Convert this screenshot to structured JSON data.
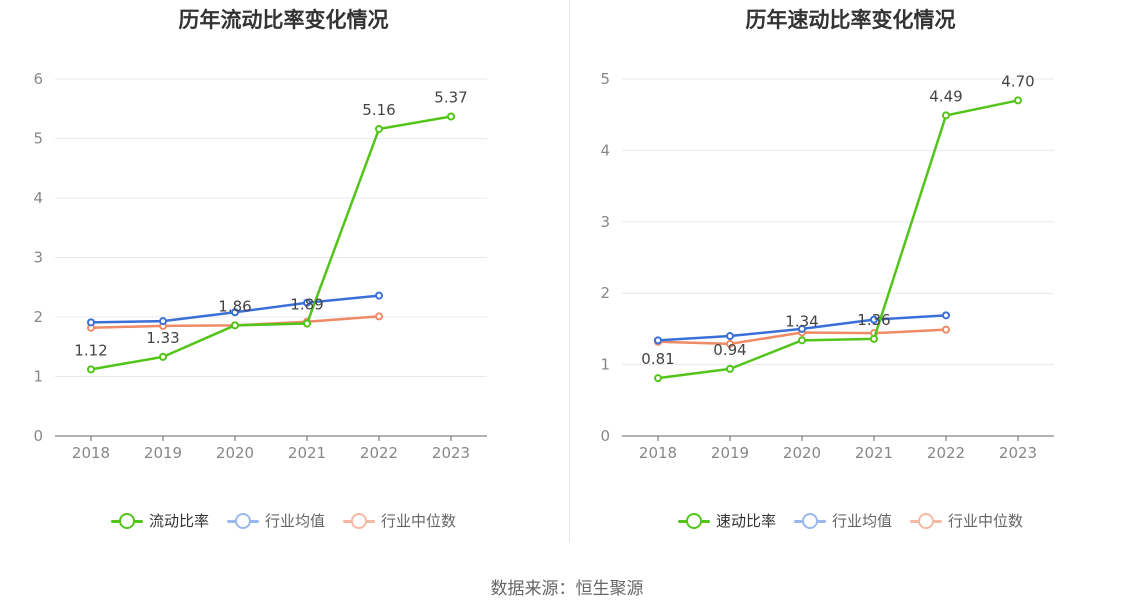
{
  "colors": {
    "green": "#52c41a",
    "blue": "#3b6fd8",
    "orange": "#ee8a66",
    "axis": "#666666",
    "grid": "#e5e8ef",
    "tick": "#888888"
  },
  "chart_data": [
    {
      "type": "line",
      "title": "历年流动比率变化情况",
      "x": [
        "2018",
        "2019",
        "2020",
        "2021",
        "2022",
        "2023"
      ],
      "ylim": [
        0,
        6
      ],
      "yticks": [
        "0",
        "1",
        "2",
        "3",
        "4",
        "5",
        "6"
      ],
      "grid": true,
      "legend_position": "bottom",
      "series": [
        {
          "name": "流动比率",
          "values": [
            1.12,
            1.33,
            1.86,
            1.89,
            5.16,
            5.37
          ],
          "labels": [
            "1.12",
            "1.33",
            "1.86",
            "1.89",
            "5.16",
            "5.37"
          ]
        },
        {
          "name": "行业均值",
          "values": [
            1.91,
            1.93,
            2.08,
            2.24,
            2.36,
            null
          ]
        },
        {
          "name": "行业中位数",
          "values": [
            1.82,
            1.85,
            1.86,
            1.92,
            2.01,
            null
          ]
        }
      ]
    },
    {
      "type": "line",
      "title": "历年速动比率变化情况",
      "x": [
        "2018",
        "2019",
        "2020",
        "2021",
        "2022",
        "2023"
      ],
      "ylim": [
        0,
        5
      ],
      "yticks": [
        "0",
        "1",
        "2",
        "3",
        "4",
        "5"
      ],
      "grid": true,
      "legend_position": "bottom",
      "series": [
        {
          "name": "速动比率",
          "values": [
            0.81,
            0.94,
            1.34,
            1.36,
            4.49,
            4.7
          ],
          "labels": [
            "0.81",
            "0.94",
            "1.34",
            "1.36",
            "4.49",
            "4.70"
          ]
        },
        {
          "name": "行业均值",
          "values": [
            1.34,
            1.4,
            1.5,
            1.63,
            1.69,
            null
          ]
        },
        {
          "name": "行业中位数",
          "values": [
            1.32,
            1.29,
            1.45,
            1.44,
            1.49,
            null
          ]
        }
      ]
    }
  ],
  "source": "数据来源：恒生聚源"
}
